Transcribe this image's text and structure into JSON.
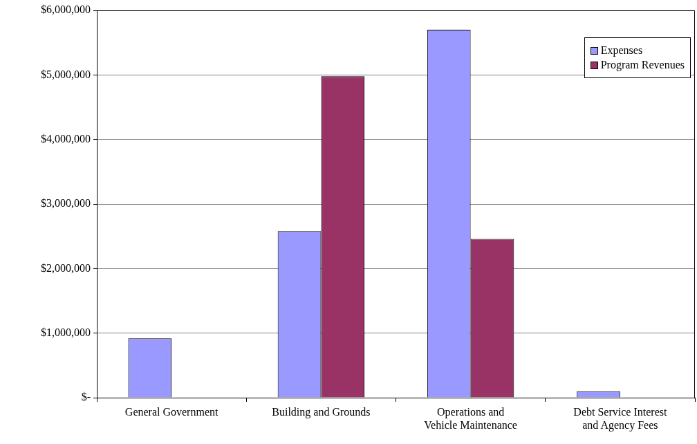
{
  "chart_data": {
    "type": "bar",
    "categories": [
      "General Government",
      "Building and Grounds",
      "Operations and\nVehicle Maintenance",
      "Debt Service Interest\nand Agency Fees"
    ],
    "series": [
      {
        "name": "Expenses",
        "color": "#9999ff",
        "values": [
          920000,
          2580000,
          5700000,
          100000
        ]
      },
      {
        "name": "Program Revenues",
        "color": "#993366",
        "values": [
          0,
          4980000,
          2460000,
          0
        ]
      }
    ],
    "ylim": [
      0,
      6000000
    ],
    "yticks": [
      {
        "value": 0,
        "label": "$-"
      },
      {
        "value": 1000000,
        "label": "$1,000,000"
      },
      {
        "value": 2000000,
        "label": "$2,000,000"
      },
      {
        "value": 3000000,
        "label": "$3,000,000"
      },
      {
        "value": 4000000,
        "label": "$4,000,000"
      },
      {
        "value": 5000000,
        "label": "$5,000,000"
      },
      {
        "value": 6000000,
        "label": "$6,000,000"
      }
    ],
    "grid": "y",
    "legend": "top right"
  }
}
